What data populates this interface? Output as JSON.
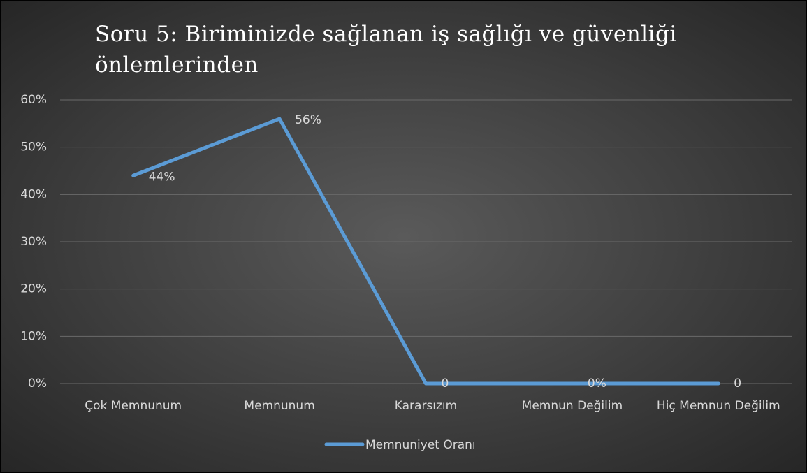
{
  "chart_data": {
    "type": "line",
    "title": "Soru 5: Biriminizde sağlanan iş sağlığı ve güvenliği önlemlerinden",
    "categories": [
      "Çok Memnunum",
      "Memnunum",
      "Kararsızım",
      "Memnun Değilim",
      "Hiç Memnun Değilim"
    ],
    "series": [
      {
        "name": "Memnuniyet Oranı",
        "color": "#5b9bd5",
        "values": [
          44,
          56,
          0,
          0,
          0
        ],
        "value_labels": [
          "44%",
          "56%",
          "0",
          "0%",
          "0"
        ]
      }
    ],
    "ylim": [
      0,
      60
    ],
    "yticks": [
      {
        "value": 0,
        "label": "0%"
      },
      {
        "value": 10,
        "label": "10%"
      },
      {
        "value": 20,
        "label": "20%"
      },
      {
        "value": 30,
        "label": "30%"
      },
      {
        "value": 40,
        "label": "40%"
      },
      {
        "value": 50,
        "label": "50%"
      },
      {
        "value": 60,
        "label": "60%"
      }
    ],
    "grid": true,
    "legend": "bottom"
  }
}
